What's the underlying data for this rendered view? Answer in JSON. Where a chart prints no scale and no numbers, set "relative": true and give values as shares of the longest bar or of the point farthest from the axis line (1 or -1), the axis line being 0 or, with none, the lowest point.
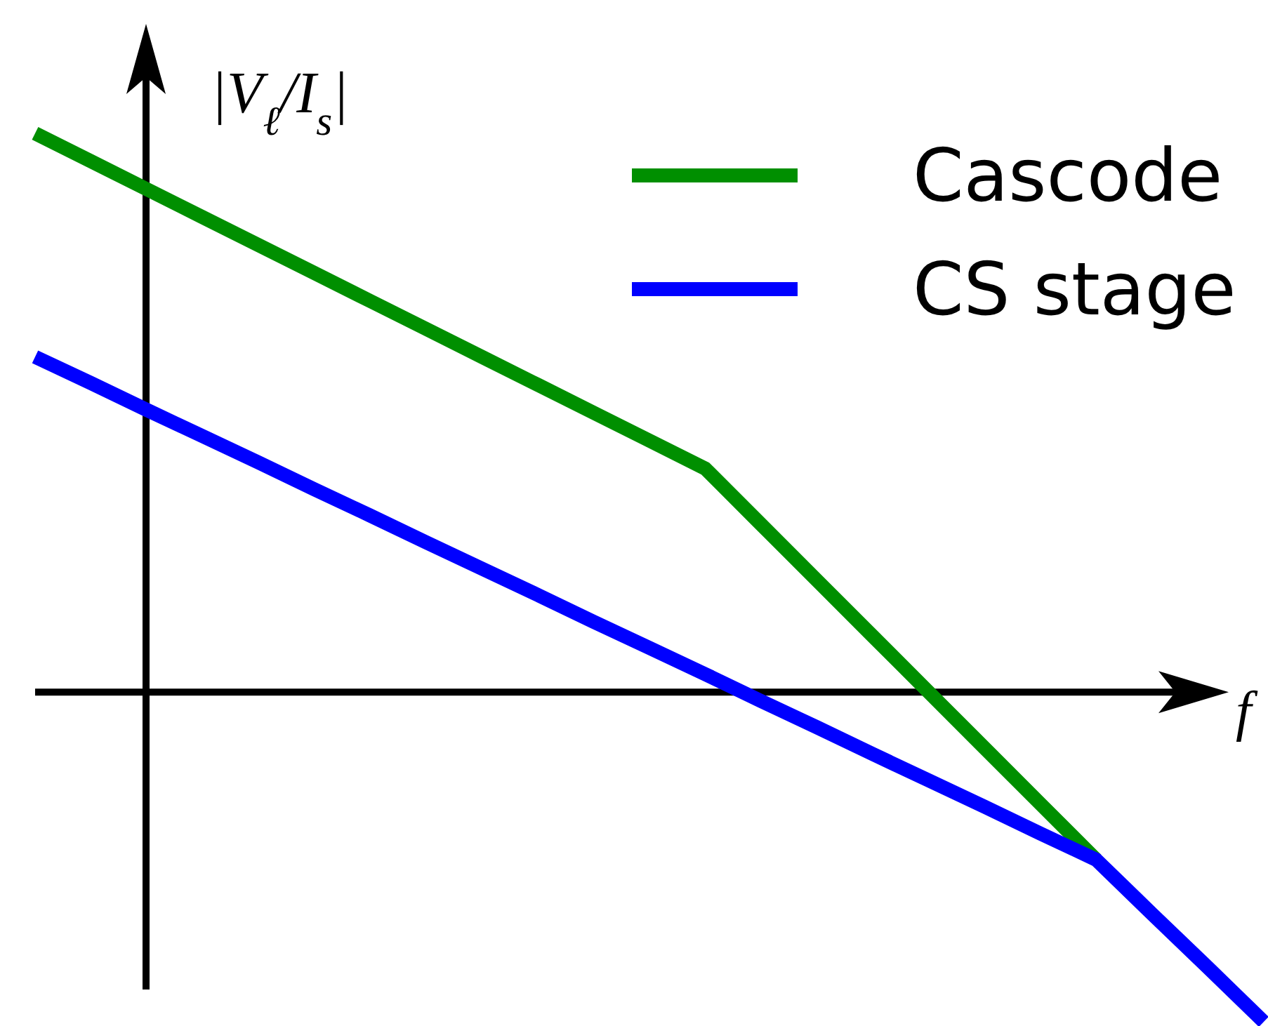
{
  "chart_data": {
    "type": "line",
    "relative": true,
    "ylabel": "|V$_{ℓ}$/I$_{s}$|",
    "xlabel": "f",
    "legend": "top right",
    "line_style": "solid",
    "categories": [
      null,
      null,
      null,
      null,
      null,
      null,
      null,
      null,
      null,
      null,
      null,
      null,
      null,
      null,
      null,
      null,
      null,
      null,
      null,
      null,
      null,
      null,
      null
    ],
    "series": [
      {
        "name": "Cascode",
        "color": "#008f00",
        "values": [
          1,
          0.95,
          0.9,
          0.85,
          0.8,
          0.75,
          0.7,
          0.65,
          0.6,
          0.55,
          0.5,
          0.45,
          0.4,
          0.3,
          0.2,
          0.1,
          0,
          -0.1,
          -0.2,
          -0.3,
          null,
          null,
          null
        ]
      },
      {
        "name": "CS stage",
        "color": "#0000ff",
        "values": [
          0.6,
          0.553,
          0.505,
          0.458,
          0.411,
          0.363,
          0.316,
          0.268,
          0.221,
          0.174,
          0.126,
          0.079,
          0.032,
          -0.016,
          -0.063,
          -0.111,
          -0.158,
          -0.205,
          -0.253,
          -0.3,
          -0.397,
          -0.493,
          -0.59
        ]
      }
    ]
  }
}
